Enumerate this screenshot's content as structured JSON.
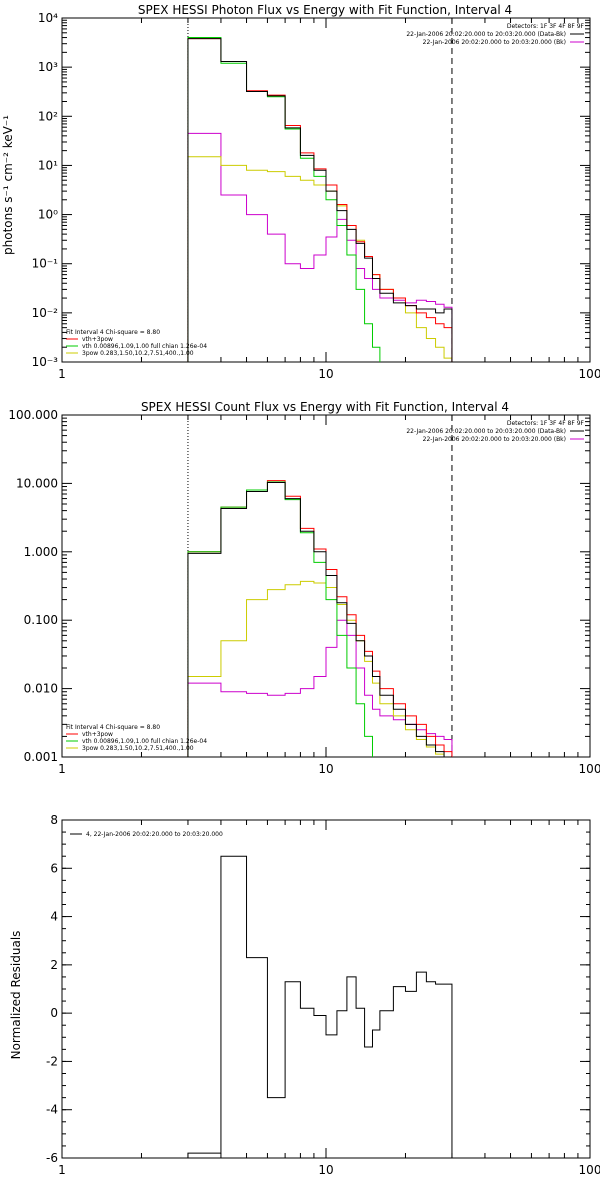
{
  "chart_data": [
    {
      "type": "line",
      "panel": "photon",
      "title": "SPEX HESSI Photon Flux vs Energy with Fit Function, Interval 4",
      "xlabel": "",
      "ylabel": "photons s⁻¹ cm⁻² keV⁻¹",
      "xscale": "log",
      "yscale": "log",
      "xlim": [
        1,
        100
      ],
      "ylim": [
        0.001,
        10000
      ],
      "xticks": [
        1,
        10,
        100
      ],
      "xtick_labels": [
        "1",
        "10",
        "100"
      ],
      "yticks": [
        0.001,
        0.01,
        0.1,
        1,
        10,
        100,
        1000,
        10000
      ],
      "ytick_labels": [
        "10⁻³",
        "10⁻²",
        "10⁻¹",
        "10⁰",
        "10¹",
        "10²",
        "10³",
        "10⁴"
      ],
      "vlines": [
        {
          "x": 3,
          "style": "dotted"
        },
        {
          "x": 30,
          "style": "dashed"
        }
      ],
      "legend_top_right": [
        {
          "text": "Detectors: 1F 3F 4F 8F 9F",
          "color": ""
        },
        {
          "text": "22-Jan-2006 20:02:20.000 to 20:03:20.000 (Data-Bk)",
          "color": "#000000"
        },
        {
          "text": "22-Jan-2006 20:02:20.000 to 20:03:20.000 (Bk)",
          "color": "#cc00cc"
        }
      ],
      "legend_bottom_left": [
        {
          "text": "Fit Interval 4   Chi-square = 8.80",
          "color": ""
        },
        {
          "text": "vth+3pow",
          "color": "#ff0000"
        },
        {
          "text": "vth 0.00896,1.09,1.00  full chian 1.26e-04",
          "color": "#00cc00"
        },
        {
          "text": "3pow 0.283,1.50,10.2,7.51,400.,1.00",
          "color": "#cccc00"
        }
      ],
      "edges": [
        3,
        4,
        5,
        6,
        7,
        8,
        9,
        10,
        11,
        12,
        13,
        14,
        15,
        16,
        18,
        20,
        22,
        24,
        26,
        28,
        30
      ],
      "series": [
        {
          "name": "Data-Bk",
          "color": "#000000",
          "values": [
            3800,
            1300,
            320,
            260,
            58,
            16,
            8,
            3,
            1.2,
            0.5,
            0.26,
            0.13,
            0.05,
            0.025,
            0.016,
            0.014,
            0.012,
            0.012,
            0.01,
            0.012
          ]
        },
        {
          "name": "vth+3pow",
          "color": "#ff0000",
          "values": [
            3800,
            1300,
            330,
            270,
            65,
            18,
            8.5,
            4,
            1.6,
            0.6,
            0.28,
            0.14,
            0.06,
            0.03,
            0.02,
            0.014,
            0.01,
            0.008,
            0.006,
            0.005
          ]
        },
        {
          "name": "vth",
          "color": "#00cc00",
          "values": [
            4000,
            1200,
            320,
            250,
            55,
            14,
            6,
            2,
            0.6,
            0.15,
            0.03,
            0.006,
            0.002,
            0.0009
          ]
        },
        {
          "name": "3pow",
          "color": "#cccc00",
          "values": [
            15,
            10,
            8,
            7.5,
            6,
            5,
            4,
            3,
            1.5,
            0.6,
            0.3,
            0.14,
            0.06,
            0.03,
            0.02,
            0.01,
            0.005,
            0.003,
            0.002,
            0.0012
          ]
        },
        {
          "name": "Bk",
          "color": "#cc00cc",
          "values": [
            45,
            2.5,
            1,
            0.4,
            0.1,
            0.08,
            0.15,
            0.35,
            0.8,
            0.3,
            0.08,
            0.05,
            0.03,
            0.02,
            0.018,
            0.016,
            0.018,
            0.017,
            0.015,
            0.013
          ]
        }
      ]
    },
    {
      "type": "line",
      "panel": "count",
      "title": "SPEX HESSI Count Flux vs Energy with Fit Function, Interval 4",
      "xlabel": "",
      "ylabel": "",
      "xscale": "log",
      "yscale": "log",
      "xlim": [
        1,
        100
      ],
      "ylim": [
        0.001,
        100
      ],
      "xticks": [
        1,
        10,
        100
      ],
      "xtick_labels": [
        "1",
        "10",
        "100"
      ],
      "yticks": [
        0.001,
        0.01,
        0.1,
        1,
        10,
        100
      ],
      "ytick_labels": [
        "0.001",
        "0.010",
        "0.100",
        "1.000",
        "10.000",
        "100.000"
      ],
      "vlines": [
        {
          "x": 3,
          "style": "dotted"
        },
        {
          "x": 30,
          "style": "dashed"
        }
      ],
      "legend_top_right": [
        {
          "text": "Detectors: 1F 3F 4F 8F 9F",
          "color": ""
        },
        {
          "text": "22-Jan-2006 20:02:20.000 to 20:03:20.000 (Data-Bk)",
          "color": "#000000"
        },
        {
          "text": "22-Jan-2006 20:02:20.000 to 20:03:20.000 (Bk)",
          "color": "#cc00cc"
        }
      ],
      "legend_bottom_left": [
        {
          "text": "Fit Interval 4   Chi-square = 8.80",
          "color": ""
        },
        {
          "text": "vth+3pow",
          "color": "#ff0000"
        },
        {
          "text": "vth 0.00896,1.09,1.00  full chian 1.26e-04",
          "color": "#00cc00"
        },
        {
          "text": "3pow 0.283,1.50,10.2,7.51,400.,1.00",
          "color": "#cccc00"
        }
      ],
      "edges": [
        3,
        4,
        5,
        6,
        7,
        8,
        9,
        10,
        11,
        12,
        13,
        14,
        15,
        16,
        18,
        20,
        22,
        24,
        26,
        28,
        30
      ],
      "series": [
        {
          "name": "Data-Bk",
          "color": "#000000",
          "values": [
            0.95,
            4.3,
            7.6,
            10.3,
            6,
            2,
            1,
            0.45,
            0.18,
            0.09,
            0.05,
            0.03,
            0.015,
            0.008,
            0.005,
            0.003,
            0.002,
            0.0015,
            0.0012,
            0.001
          ]
        },
        {
          "name": "vth+3pow",
          "color": "#ff0000",
          "values": [
            1,
            4.5,
            8,
            11,
            6.5,
            2.2,
            1.1,
            0.55,
            0.22,
            0.12,
            0.06,
            0.035,
            0.018,
            0.01,
            0.006,
            0.004,
            0.003,
            0.002,
            0.0015,
            0.0012
          ]
        },
        {
          "name": "vth",
          "color": "#00cc00",
          "values": [
            1,
            4.5,
            8,
            10.5,
            5.8,
            1.9,
            0.7,
            0.2,
            0.06,
            0.02,
            0.006,
            0.002
          ]
        },
        {
          "name": "3pow",
          "color": "#cccc00",
          "values": [
            0.015,
            0.05,
            0.2,
            0.28,
            0.33,
            0.37,
            0.35,
            0.3,
            0.17,
            0.1,
            0.05,
            0.025,
            0.012,
            0.006,
            0.004,
            0.0025,
            0.0018,
            0.0014,
            0.0011,
            0.001
          ]
        },
        {
          "name": "Bk",
          "color": "#cc00cc",
          "values": [
            0.012,
            0.009,
            0.0085,
            0.008,
            0.0085,
            0.01,
            0.015,
            0.04,
            0.1,
            0.06,
            0.02,
            0.008,
            0.005,
            0.004,
            0.0035,
            0.003,
            0.0025,
            0.0022,
            0.002,
            0.0018
          ]
        }
      ]
    },
    {
      "type": "line",
      "panel": "residuals",
      "title": "",
      "xlabel": "",
      "ylabel": "Normalized Residuals",
      "xscale": "log",
      "yscale": "linear",
      "xlim": [
        1,
        100
      ],
      "ylim": [
        -6,
        8
      ],
      "xticks": [
        1,
        10,
        100
      ],
      "xtick_labels": [
        "1",
        "10",
        "100"
      ],
      "yticks": [
        -6,
        -4,
        -2,
        0,
        2,
        4,
        6,
        8
      ],
      "ytick_labels": [
        "-6",
        "-4",
        "-2",
        "0",
        "2",
        "4",
        "6",
        "8"
      ],
      "legend_top_left": [
        {
          "text": "4, 22-Jan-2006 20:02:20.000 to 20:03:20.000",
          "color": "#000000"
        }
      ],
      "edges": [
        3,
        4,
        5,
        6,
        7,
        8,
        9,
        10,
        11,
        12,
        13,
        14,
        15,
        16,
        18,
        20,
        22,
        24,
        26,
        28,
        30
      ],
      "series": [
        {
          "name": "",
          "color": "#000000",
          "values": [
            -5.8,
            6.5,
            2.3,
            -3.5,
            1.3,
            0.2,
            -0.1,
            -0.9,
            0.1,
            1.5,
            0.2,
            -1.4,
            -0.7,
            0.1,
            1.1,
            0.9,
            1.7,
            1.3,
            1.2,
            1.2
          ]
        }
      ]
    }
  ]
}
